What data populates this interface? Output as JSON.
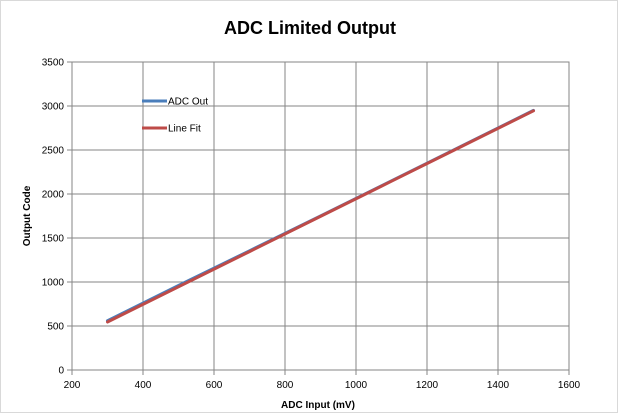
{
  "chart_data": {
    "type": "line",
    "title": "ADC Limited Output",
    "xlabel": "ADC Input (mV)",
    "ylabel": "Output Code",
    "xlim": [
      200,
      1600
    ],
    "ylim": [
      0,
      3500
    ],
    "x_ticks": [
      200,
      400,
      600,
      800,
      1000,
      1200,
      1400,
      1600
    ],
    "y_ticks": [
      0,
      500,
      1000,
      1500,
      2000,
      2500,
      3000,
      3500
    ],
    "grid": true,
    "legend_position": "top-left",
    "series": [
      {
        "name": "ADC Out",
        "color": "#4a7ebb",
        "x": [
          300,
          500,
          700,
          900,
          1100,
          1300,
          1500
        ],
        "y": [
          560,
          960,
          1355,
          1750,
          2150,
          2550,
          2950
        ]
      },
      {
        "name": "Line Fit",
        "color": "#be4b48",
        "x": [
          300,
          500,
          700,
          900,
          1100,
          1300,
          1500
        ],
        "y": [
          545,
          945,
          1345,
          1745,
          2145,
          2545,
          2945
        ]
      }
    ]
  }
}
